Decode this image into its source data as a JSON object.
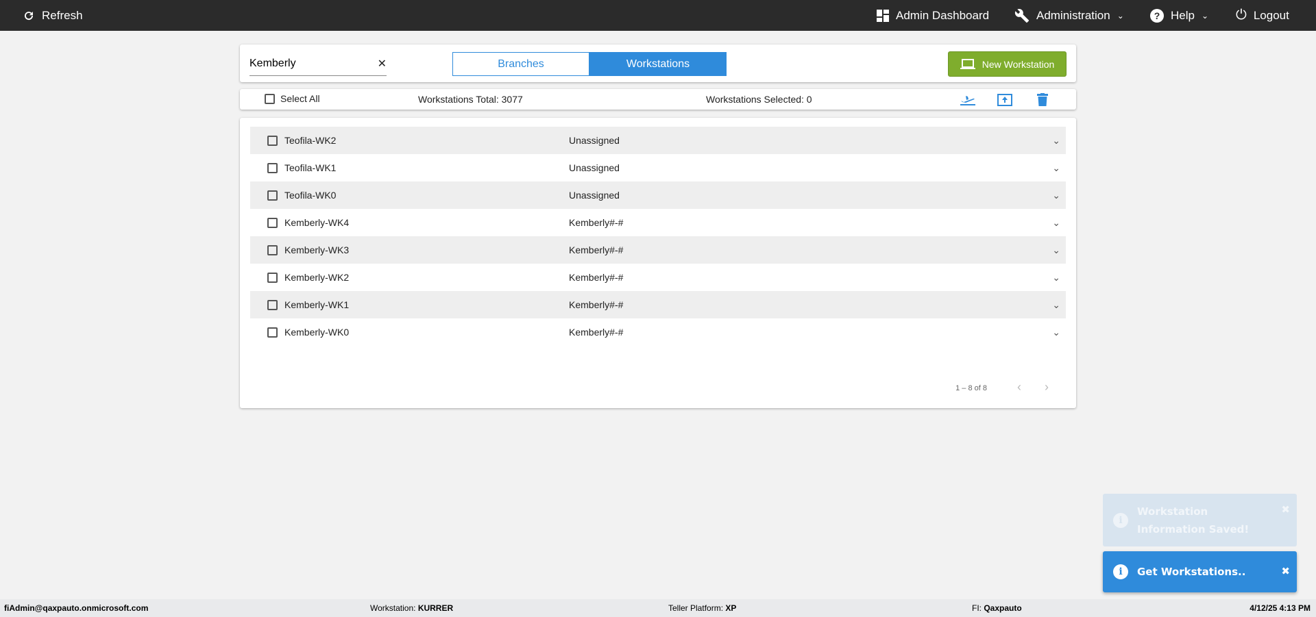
{
  "topbar": {
    "refresh": "Refresh",
    "admin_dashboard": "Admin Dashboard",
    "administration": "Administration",
    "help": "Help",
    "logout": "Logout"
  },
  "search": {
    "value": "Kemberly"
  },
  "tabs": [
    {
      "label": "Branches",
      "active": false
    },
    {
      "label": "Workstations",
      "active": true
    }
  ],
  "new_button": "New Workstation",
  "toolbar": {
    "select_all": "Select All",
    "total": "Workstations Total: 3077",
    "selected": "Workstations Selected: 0"
  },
  "rows": [
    {
      "name": "Teofila-WK2",
      "branch": "Unassigned"
    },
    {
      "name": "Teofila-WK1",
      "branch": "Unassigned"
    },
    {
      "name": "Teofila-WK0",
      "branch": "Unassigned"
    },
    {
      "name": "Kemberly-WK4",
      "branch": "Kemberly#-#"
    },
    {
      "name": "Kemberly-WK3",
      "branch": "Kemberly#-#"
    },
    {
      "name": "Kemberly-WK2",
      "branch": "Kemberly#-#"
    },
    {
      "name": "Kemberly-WK1",
      "branch": "Kemberly#-#"
    },
    {
      "name": "Kemberly-WK0",
      "branch": "Kemberly#-#"
    }
  ],
  "pagination": "1 – 8 of 8",
  "toasts": [
    {
      "text": "Workstation Information Saved!"
    },
    {
      "text": "Get Workstations.."
    }
  ],
  "footer": {
    "user": "fiAdmin@qaxpauto.onmicrosoft.com",
    "workstation_label": "Workstation: ",
    "workstation": "KURRER",
    "platform_label": "Teller Platform: ",
    "platform": "XP",
    "fi_label": "FI: ",
    "fi": "Qaxpauto",
    "datetime": "4/12/25 4:13 PM"
  },
  "colors": {
    "accent": "#2f8bdb",
    "green": "#7fad2d",
    "topbar": "#2b2b2b"
  }
}
